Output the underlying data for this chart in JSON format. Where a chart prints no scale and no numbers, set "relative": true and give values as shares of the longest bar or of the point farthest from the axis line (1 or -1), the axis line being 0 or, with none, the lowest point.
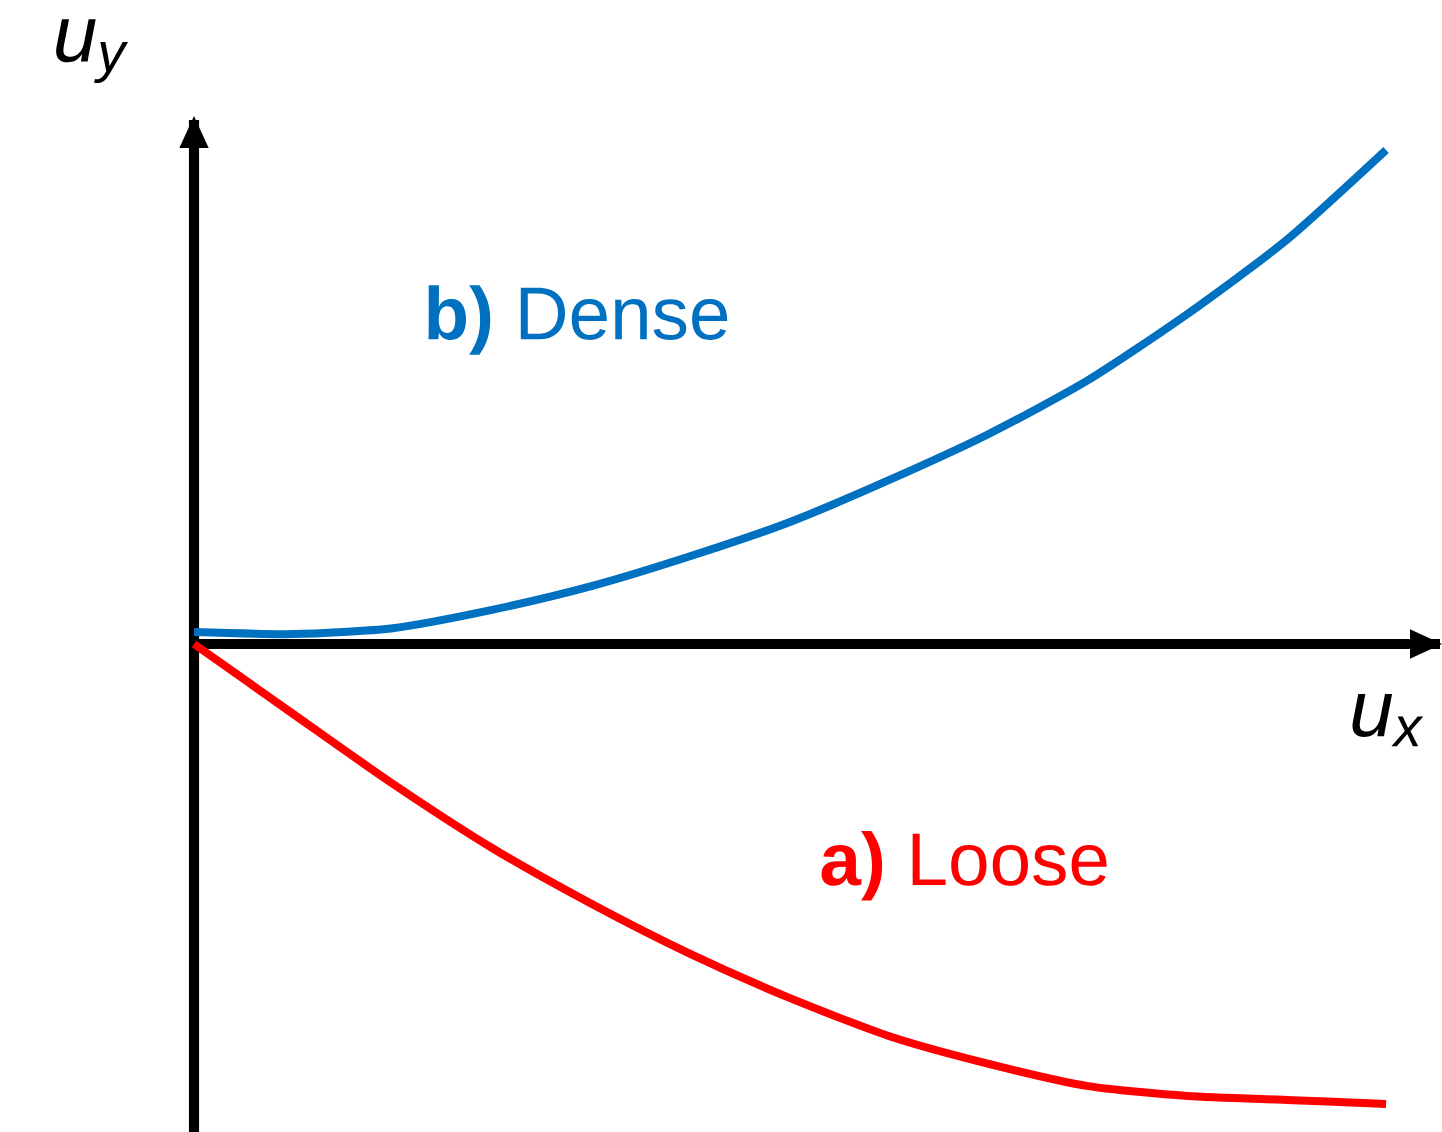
{
  "chart_data": {
    "type": "line",
    "relative": true,
    "xlabel": "u$_{x}$",
    "ylabel": "u$_{y}$",
    "categories": [
      null,
      null,
      null,
      null,
      null,
      null,
      null,
      null,
      null,
      null,
      null,
      null,
      null
    ],
    "series": [
      {
        "name": "**b)** Dense",
        "color": "#0070c0",
        "values": [
          0.024,
          0.02,
          0.032,
          0.069,
          0.117,
          0.178,
          0.247,
          0.332,
          0.425,
          0.534,
          0.668,
          0.818,
          1
        ]
      },
      {
        "name": "**a)** Loose",
        "color": "#ff0000",
        "values": [
          0,
          -0.142,
          -0.283,
          -0.413,
          -0.526,
          -0.628,
          -0.717,
          -0.794,
          -0.85,
          -0.895,
          -0.915,
          -0.923,
          -0.931
        ]
      }
    ]
  }
}
